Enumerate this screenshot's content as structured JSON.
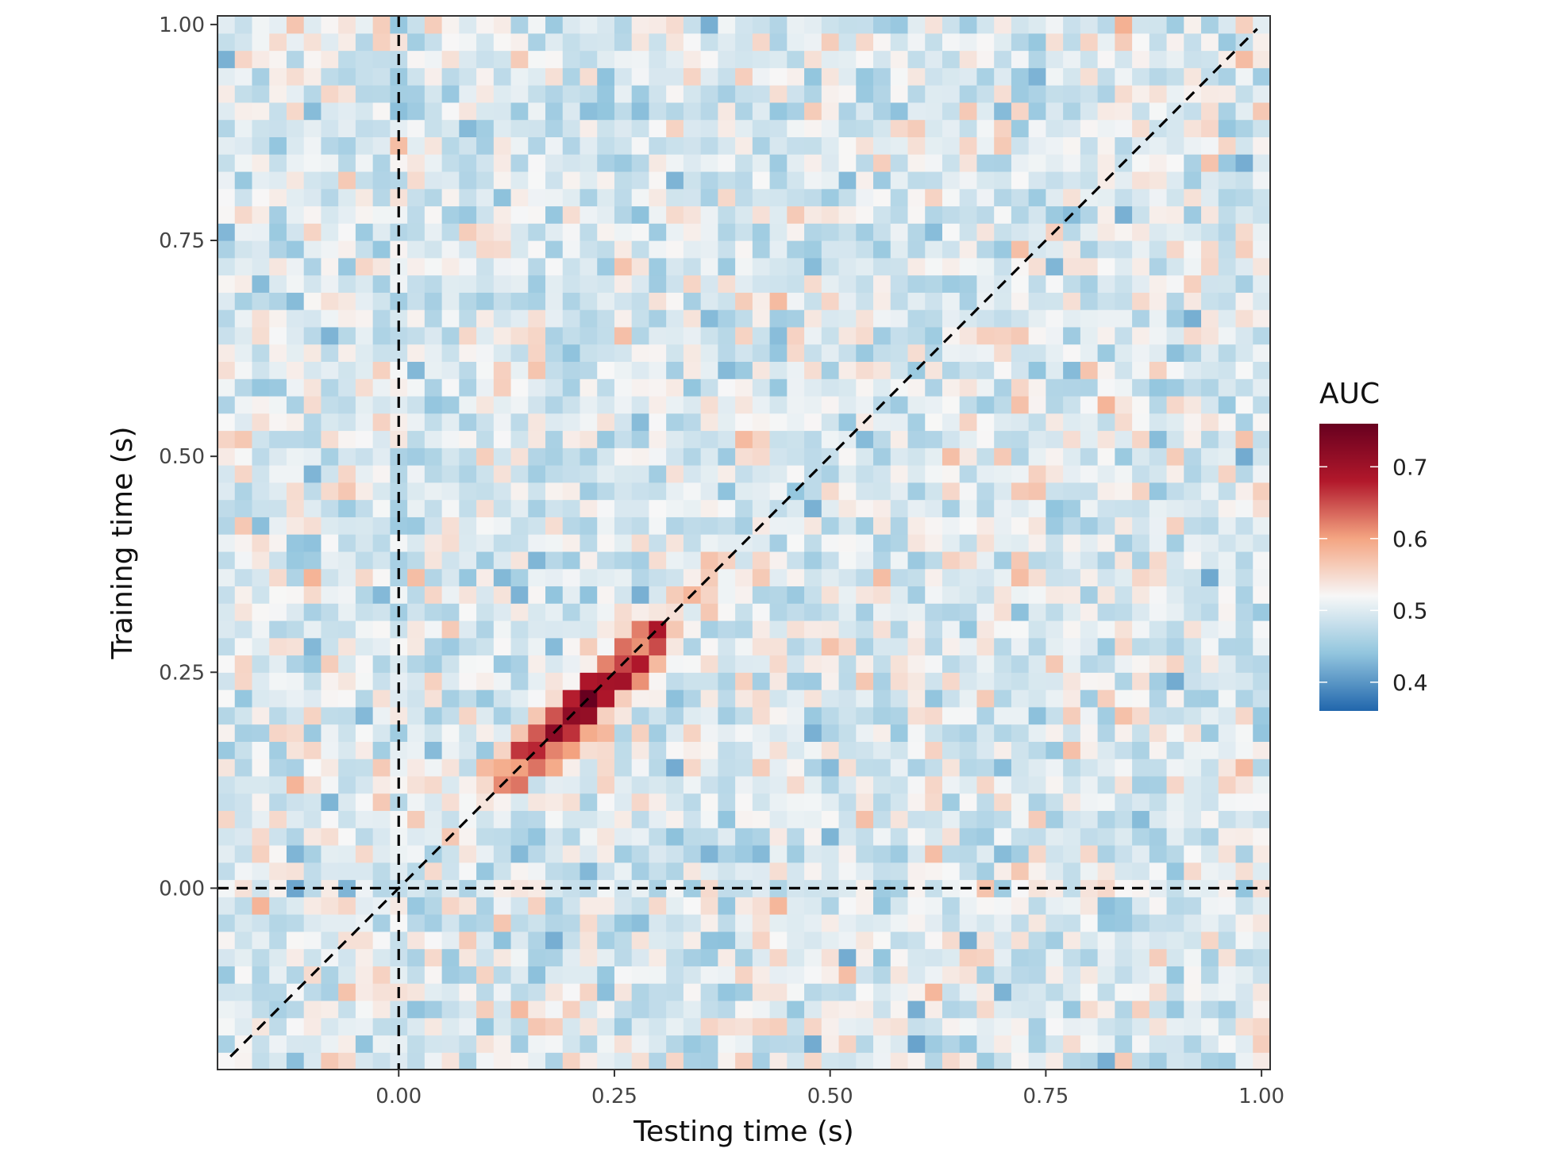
{
  "chart_data": {
    "type": "heatmap",
    "xlabel": "Testing time (s)",
    "ylabel": "Training time (s)",
    "xlim": [
      -0.21,
      1.01
    ],
    "ylim": [
      -0.21,
      1.01
    ],
    "x_ticks": [
      0.0,
      0.25,
      0.5,
      0.75,
      1.0
    ],
    "x_tick_labels": [
      "0.00",
      "0.25",
      "0.50",
      "0.75",
      "1.00"
    ],
    "y_ticks": [
      0.0,
      0.25,
      0.5,
      0.75,
      1.0
    ],
    "y_tick_labels": [
      "0.00",
      "0.25",
      "0.50",
      "0.75",
      "1.00"
    ],
    "time_range": [
      -0.21,
      1.01
    ],
    "n_bins": 61,
    "diagonal_peak": {
      "center_time": 0.22,
      "peak_auc": 0.75
    },
    "reference_lines": [
      {
        "type": "vertical",
        "x": 0.0,
        "style": "dashed"
      },
      {
        "type": "horizontal",
        "y": 0.0,
        "style": "dashed"
      },
      {
        "type": "diagonal",
        "slope": 1,
        "style": "dashed"
      }
    ],
    "colorbar": {
      "title": "AUC",
      "range": [
        0.36,
        0.76
      ],
      "ticks": [
        0.4,
        0.5,
        0.6,
        0.7
      ],
      "tick_labels": [
        "0.4",
        "0.5",
        "0.6",
        "0.7"
      ],
      "colors": [
        "#2166ac",
        "#92c5de",
        "#f7f7f7",
        "#f4a582",
        "#b2182b",
        "#67001f"
      ]
    },
    "grid": false,
    "legend_position": "right"
  }
}
